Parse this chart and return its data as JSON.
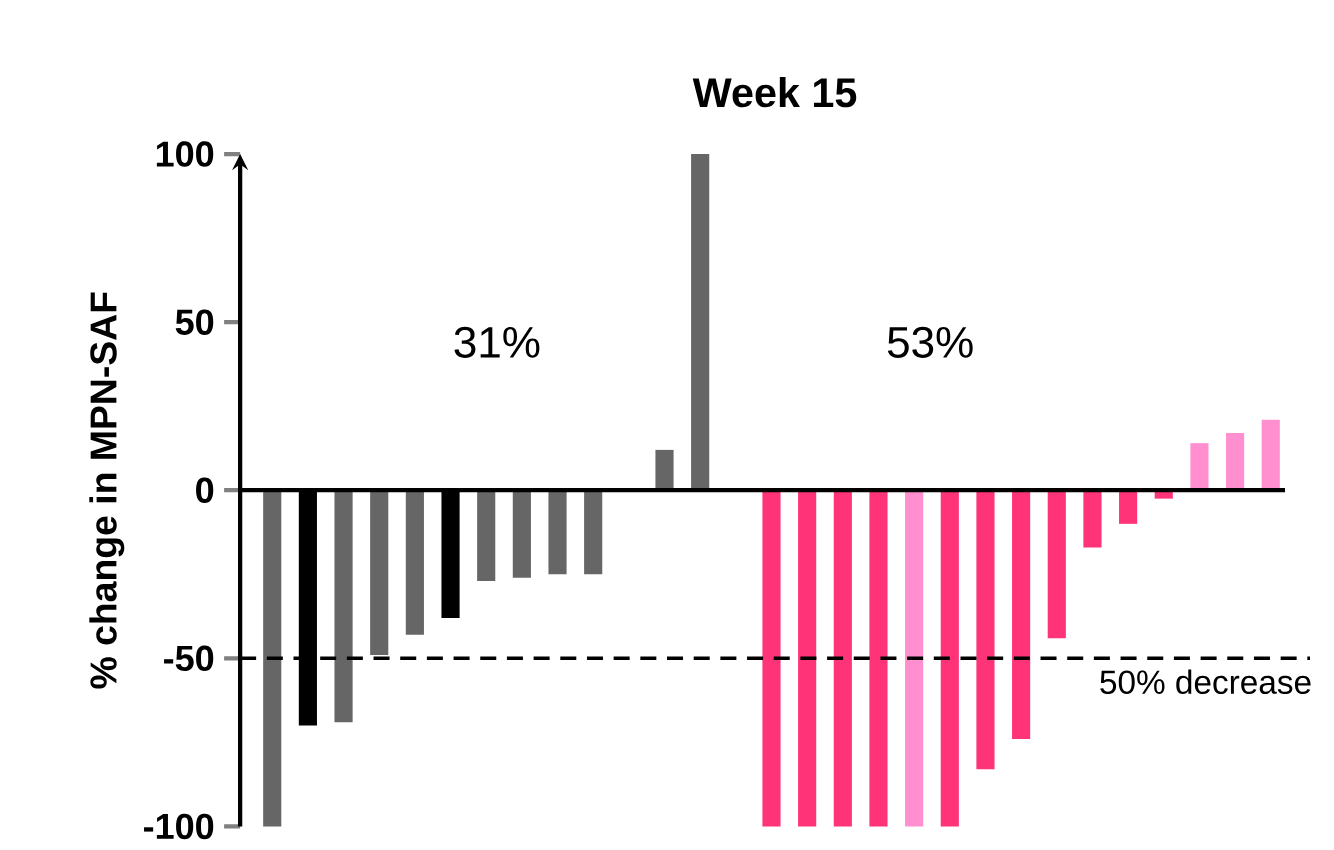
{
  "chart_data": {
    "type": "bar",
    "title": "Week 15",
    "ylabel": "% change in MPN-SAF",
    "categories": [
      null,
      null,
      null,
      null,
      null,
      null,
      null,
      null,
      null,
      null,
      null,
      null,
      null,
      null,
      null,
      null,
      null,
      null,
      null,
      null,
      null,
      null,
      null,
      null,
      null,
      null,
      null,
      null,
      null
    ],
    "values": [
      -100,
      -70,
      -69,
      -49,
      -43,
      -38,
      -27,
      -26,
      -25,
      -25,
      null,
      12,
      100,
      null,
      -100,
      -100,
      -100,
      -100,
      -100,
      -100,
      -83,
      -74,
      -44,
      -17,
      -10,
      -2.5,
      14,
      17,
      21
    ],
    "colors": [
      "#666666",
      "#000000",
      "#666666",
      "#666666",
      "#666666",
      "#000000",
      "#666666",
      "#666666",
      "#666666",
      "#666666",
      "#666666",
      "#666666",
      "#666666",
      "#666666",
      "#ff3377",
      "#ff3377",
      "#ff3377",
      "#ff3377",
      "#ff8fcf",
      "#ff3377",
      "#ff3377",
      "#ff3377",
      "#ff3377",
      "#ff3377",
      "#ff3377",
      "#ff3377",
      "#ff8fcf",
      "#ff8fcf",
      "#ff8fcf"
    ],
    "ylim": [
      -100,
      100
    ],
    "yticks": [
      -100,
      -50,
      0,
      50,
      100
    ],
    "ref_lines": [
      {
        "axis": "y",
        "value": -50,
        "label": "50% decrease",
        "color": "#000000",
        "line_style": "dashed"
      }
    ],
    "annotations": [
      "31%",
      "53%"
    ]
  }
}
